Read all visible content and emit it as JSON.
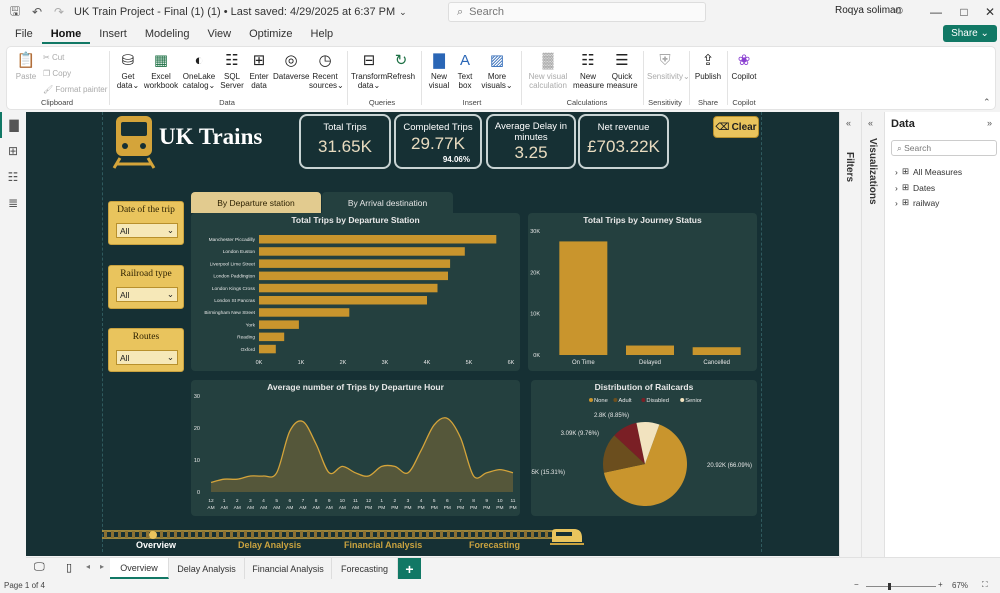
{
  "window": {
    "title": "UK Train Project - Final (1) (1) • Last saved: 4/29/2025 at 6:37 PM",
    "search_placeholder": "Search",
    "user": "Roqya soliman"
  },
  "menu": [
    "File",
    "Home",
    "Insert",
    "Modeling",
    "View",
    "Optimize",
    "Help"
  ],
  "share_label": "Share",
  "ribbon": {
    "clipboard": {
      "paste": "Paste",
      "cut": "Cut",
      "copy": "Copy",
      "format_painter": "Format painter",
      "group": "Clipboard"
    },
    "data": {
      "get_data": "Get data",
      "excel": "Excel workbook",
      "onelake": "OneLake catalog",
      "sql": "SQL Server",
      "enter": "Enter data",
      "dataverse": "Dataverse",
      "recent": "Recent sources",
      "group": "Data"
    },
    "queries": {
      "transform": "Transform data",
      "refresh": "Refresh",
      "group": "Queries"
    },
    "insert": {
      "new_visual": "New visual",
      "text_box": "Text box",
      "more_visuals": "More visuals",
      "group": "Insert"
    },
    "calculations": {
      "new_visual_calc": "New visual calculation",
      "new_measure": "New measure",
      "quick_measure": "Quick measure",
      "group": "Calculations"
    },
    "sensitivity": {
      "label": "Sensitivity",
      "group": "Sensitivity"
    },
    "share": {
      "publish": "Publish",
      "group": "Share"
    },
    "copilot": {
      "label": "Copilot",
      "group": "Copilot"
    }
  },
  "report": {
    "logo_text": "UK Trains",
    "clear_label": "Clear",
    "kpis": [
      {
        "label": "Total Trips",
        "value": "31.65K"
      },
      {
        "label": "Completed Trips",
        "value": "29.77K",
        "sub": "94.06%"
      },
      {
        "label": "Average Delay in minutes",
        "value": "3.25"
      },
      {
        "label": "Net revenue",
        "value": "£703.22K"
      }
    ],
    "slicers": [
      {
        "title": "Date of the trip",
        "value": "All"
      },
      {
        "title": "Railroad type",
        "value": "All"
      },
      {
        "title": "Routes",
        "value": "All"
      }
    ],
    "tabs": [
      "By Departure station",
      "By Arrival destination"
    ],
    "nav": [
      "Overview",
      "Delay Analysis",
      "Financial Analysis",
      "Forecasting"
    ]
  },
  "chart_data": [
    {
      "type": "bar",
      "orientation": "horizontal",
      "title": "Total Trips by Departure Station",
      "categories": [
        "Manchester Piccadilly",
        "London Euston",
        "Liverpool Lime Street",
        "London Paddington",
        "London Kings Cross",
        "London St Pancras",
        "Birmingham New Street",
        "York",
        "Reading",
        "Oxford"
      ],
      "values": [
        5650,
        4900,
        4550,
        4500,
        4250,
        4000,
        2150,
        950,
        600,
        400
      ],
      "xticks": [
        "0K",
        "1K",
        "2K",
        "3K",
        "4K",
        "5K",
        "6K"
      ],
      "xlim": [
        0,
        6000
      ]
    },
    {
      "type": "bar",
      "title": "Total Trips by Journey Status",
      "categories": [
        "On Time",
        "Delayed",
        "Cancelled"
      ],
      "values": [
        27480,
        2290,
        1880
      ],
      "yticks": [
        "0K",
        "10K",
        "20K",
        "30K"
      ],
      "ylim": [
        0,
        30000
      ]
    },
    {
      "type": "area",
      "title": "Average number of Trips by Departure Hour",
      "x": [
        "12 AM",
        "1 AM",
        "2 AM",
        "3 AM",
        "4 AM",
        "5 AM",
        "6 AM",
        "7 AM",
        "8 AM",
        "9 AM",
        "10 AM",
        "11 AM",
        "12 PM",
        "1 PM",
        "2 PM",
        "3 PM",
        "4 PM",
        "5 PM",
        "6 PM",
        "7 PM",
        "8 PM",
        "9 PM",
        "10 PM",
        "11 PM"
      ],
      "values": [
        3,
        4,
        4,
        5,
        5,
        6,
        19,
        22,
        15,
        6,
        8,
        6,
        5,
        8,
        8,
        6,
        13,
        21,
        23,
        17,
        5,
        6,
        7,
        6
      ],
      "yticks": [
        "0",
        "10",
        "20",
        "30"
      ],
      "ylim": [
        0,
        30
      ]
    },
    {
      "type": "pie",
      "title": "Distribution of Railcards",
      "legend": [
        "None",
        "Adult",
        "Disabled",
        "Senior"
      ],
      "legend_position": "top",
      "colors": [
        "#c9952d",
        "#6b4e1e",
        "#7a1f25",
        "#f2e3bf"
      ],
      "values": [
        20.92,
        4.85,
        3.09,
        2.8
      ],
      "labels": [
        "20.92K (66.09%)",
        "4.85K (15.31%)",
        "3.09K (9.76%)",
        "2.8K (8.85%)"
      ]
    }
  ],
  "data_pane": {
    "title": "Data",
    "search_placeholder": "Search",
    "items": [
      "All Measures",
      "Dates",
      "railway"
    ]
  },
  "side_labels": {
    "filters": "Filters",
    "visualizations": "Visualizations"
  },
  "page_tabs": [
    "Overview",
    "Delay Analysis",
    "Financial Analysis",
    "Forecasting"
  ],
  "status": {
    "page": "Page 1 of 4",
    "zoom": "67%"
  }
}
